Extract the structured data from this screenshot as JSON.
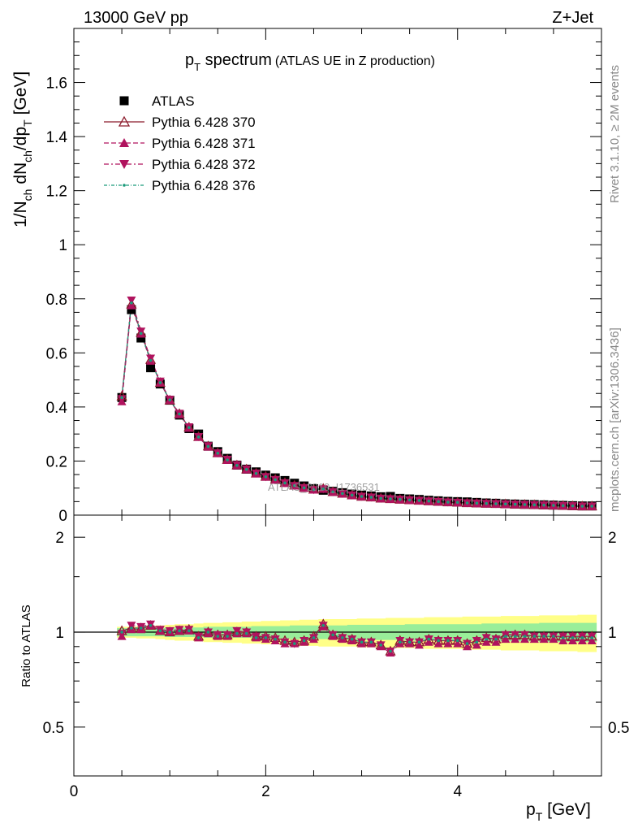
{
  "header": {
    "energy": "13000 GeV pp",
    "process": "Z+Jet"
  },
  "side_labels": {
    "rivet": "Rivet 3.1.10, ≥ 2M events",
    "mcplots": "mcplots.cern.ch [arXiv:1306.3436]"
  },
  "watermark": "ATLAS_2019_I1736531",
  "chart_data": [
    {
      "type": "scatter",
      "title_main": "p",
      "title_sub": "T",
      "title_rest": " spectrum",
      "title_note": "(ATLAS UE in Z production)",
      "ylabel_pre": "1/N",
      "ylabel_sub1": "ch",
      "ylabel_mid": " dN",
      "ylabel_sub2": "ch",
      "ylabel_post": "/dp",
      "ylabel_sub3": "T",
      "ylabel_unit": " [GeV]",
      "xlim": [
        0,
        5.5
      ],
      "ylim": [
        0,
        1.8
      ],
      "y_ticks": [
        0,
        0.2,
        0.4,
        0.6,
        0.8,
        1,
        1.2,
        1.4,
        1.6
      ],
      "y_tick_labels": [
        "0",
        "0.2",
        "0.4",
        "0.6",
        "0.8",
        "1",
        "1.2",
        "1.4",
        "1.6"
      ],
      "legend_position": "top-left",
      "x": [
        0.5,
        0.6,
        0.7,
        0.8,
        0.9,
        1.0,
        1.1,
        1.2,
        1.3,
        1.4,
        1.5,
        1.6,
        1.7,
        1.8,
        1.9,
        2.0,
        2.1,
        2.2,
        2.3,
        2.4,
        2.5,
        2.6,
        2.7,
        2.8,
        2.9,
        3.0,
        3.1,
        3.2,
        3.3,
        3.4,
        3.5,
        3.6,
        3.7,
        3.8,
        3.9,
        4.0,
        4.1,
        4.2,
        4.3,
        4.4,
        4.5,
        4.6,
        4.7,
        4.8,
        4.9,
        5.0,
        5.1,
        5.2,
        5.3,
        5.4
      ],
      "series": [
        {
          "name": "ATLAS",
          "color": "#000000",
          "marker": "square",
          "values": [
            0.435,
            0.76,
            0.655,
            0.545,
            0.485,
            0.425,
            0.37,
            0.32,
            0.3,
            0.255,
            0.235,
            0.21,
            0.185,
            0.17,
            0.16,
            0.148,
            0.138,
            0.128,
            0.118,
            0.108,
            0.098,
            0.092,
            0.088,
            0.083,
            0.078,
            0.074,
            0.071,
            0.068,
            0.069,
            0.062,
            0.06,
            0.058,
            0.055,
            0.053,
            0.051,
            0.05,
            0.049,
            0.047,
            0.045,
            0.044,
            0.042,
            0.041,
            0.04,
            0.039,
            0.038,
            0.037,
            0.036,
            0.035,
            0.034,
            0.034
          ]
        },
        {
          "name": "Pythia 6.428 370",
          "color": "#8b1a2b",
          "marker": "open-triangle-up",
          "dash": "",
          "values": [
            0.44,
            0.78,
            0.675,
            0.575,
            0.49,
            0.425,
            0.375,
            0.325,
            0.29,
            0.255,
            0.23,
            0.205,
            0.185,
            0.17,
            0.155,
            0.143,
            0.132,
            0.12,
            0.11,
            0.102,
            0.095,
            0.098,
            0.086,
            0.08,
            0.074,
            0.069,
            0.066,
            0.062,
            0.06,
            0.058,
            0.056,
            0.054,
            0.052,
            0.05,
            0.048,
            0.047,
            0.045,
            0.044,
            0.043,
            0.042,
            0.041,
            0.04,
            0.039,
            0.038,
            0.037,
            0.036,
            0.035,
            0.034,
            0.033,
            0.033
          ]
        },
        {
          "name": "Pythia 6.428 371",
          "color": "#b0135e",
          "marker": "triangle-up",
          "dash": "6,3",
          "values": [
            0.42,
            0.775,
            0.67,
            0.57,
            0.49,
            0.425,
            0.372,
            0.322,
            0.288,
            0.252,
            0.228,
            0.203,
            0.183,
            0.168,
            0.153,
            0.141,
            0.13,
            0.118,
            0.108,
            0.1,
            0.093,
            0.096,
            0.085,
            0.079,
            0.073,
            0.068,
            0.065,
            0.061,
            0.059,
            0.057,
            0.055,
            0.053,
            0.051,
            0.049,
            0.047,
            0.046,
            0.044,
            0.043,
            0.042,
            0.041,
            0.04,
            0.039,
            0.038,
            0.037,
            0.036,
            0.035,
            0.034,
            0.033,
            0.032,
            0.032
          ]
        },
        {
          "name": "Pythia 6.428 372",
          "color": "#b0135e",
          "marker": "triangle-down",
          "dash": "6,3,2,3",
          "values": [
            0.43,
            0.795,
            0.68,
            0.58,
            0.495,
            0.428,
            0.376,
            0.326,
            0.29,
            0.256,
            0.23,
            0.206,
            0.186,
            0.17,
            0.155,
            0.142,
            0.131,
            0.119,
            0.109,
            0.101,
            0.094,
            0.097,
            0.086,
            0.08,
            0.074,
            0.069,
            0.066,
            0.062,
            0.06,
            0.058,
            0.056,
            0.054,
            0.052,
            0.05,
            0.048,
            0.047,
            0.045,
            0.044,
            0.043,
            0.042,
            0.041,
            0.04,
            0.039,
            0.038,
            0.037,
            0.036,
            0.035,
            0.034,
            0.033,
            0.033
          ]
        },
        {
          "name": "Pythia 6.428 376",
          "color": "#1a9a7a",
          "marker": "dot",
          "dash": "4,2,1,2",
          "values": [
            0.435,
            0.785,
            0.672,
            0.572,
            0.49,
            0.426,
            0.374,
            0.324,
            0.289,
            0.254,
            0.229,
            0.204,
            0.184,
            0.169,
            0.154,
            0.142,
            0.131,
            0.119,
            0.109,
            0.101,
            0.094,
            0.097,
            0.086,
            0.08,
            0.074,
            0.069,
            0.066,
            0.062,
            0.06,
            0.058,
            0.056,
            0.054,
            0.052,
            0.05,
            0.048,
            0.047,
            0.045,
            0.044,
            0.043,
            0.042,
            0.041,
            0.04,
            0.039,
            0.038,
            0.037,
            0.036,
            0.035,
            0.034,
            0.033,
            0.033
          ]
        }
      ]
    },
    {
      "type": "scatter",
      "ylabel": "Ratio to ATLAS",
      "xlabel_main": "p",
      "xlabel_sub": "T",
      "xlabel_unit": " [GeV]",
      "xlim": [
        0,
        5.5
      ],
      "ylim": [
        0.35,
        2.35
      ],
      "log_y": true,
      "x_ticks": [
        0,
        2,
        4
      ],
      "x_tick_labels": [
        "0",
        "2",
        "4"
      ],
      "y_ticks": [
        0.5,
        1,
        2
      ],
      "y_tick_labels": [
        "0.5",
        "1",
        "2"
      ],
      "band_green_halfwidth": [
        0.03,
        0.03,
        0.03,
        0.03,
        0.03,
        0.035,
        0.035,
        0.035,
        0.035,
        0.04,
        0.04,
        0.04,
        0.04,
        0.04,
        0.045,
        0.045,
        0.045,
        0.045,
        0.05,
        0.05,
        0.05,
        0.05,
        0.05,
        0.05,
        0.055,
        0.055,
        0.055,
        0.055,
        0.055,
        0.055,
        0.06,
        0.06,
        0.06,
        0.06,
        0.06,
        0.06,
        0.06,
        0.06,
        0.065,
        0.065,
        0.065,
        0.065,
        0.065,
        0.065,
        0.07,
        0.07,
        0.07,
        0.07,
        0.07,
        0.07
      ],
      "band_yellow_halfwidth": [
        0.04,
        0.04,
        0.045,
        0.045,
        0.05,
        0.055,
        0.06,
        0.06,
        0.065,
        0.07,
        0.07,
        0.075,
        0.075,
        0.08,
        0.08,
        0.085,
        0.085,
        0.09,
        0.09,
        0.095,
        0.095,
        0.1,
        0.1,
        0.1,
        0.1,
        0.105,
        0.105,
        0.105,
        0.11,
        0.11,
        0.11,
        0.11,
        0.115,
        0.115,
        0.115,
        0.115,
        0.12,
        0.12,
        0.12,
        0.12,
        0.125,
        0.125,
        0.125,
        0.125,
        0.13,
        0.13,
        0.13,
        0.13,
        0.135,
        0.135
      ],
      "series": [
        {
          "name": "Pythia 6.428 370",
          "color": "#8b1a2b",
          "marker": "open-triangle-up",
          "dash": "",
          "values": [
            1.01,
            1.03,
            1.03,
            1.05,
            1.01,
            1.0,
            1.01,
            1.02,
            0.97,
            1.0,
            0.98,
            0.98,
            1.0,
            1.0,
            0.97,
            0.97,
            0.96,
            0.94,
            0.93,
            0.94,
            0.97,
            1.06,
            0.98,
            0.96,
            0.95,
            0.93,
            0.93,
            0.91,
            0.87,
            0.94,
            0.93,
            0.93,
            0.95,
            0.94,
            0.94,
            0.94,
            0.92,
            0.94,
            0.96,
            0.95,
            0.98,
            0.98,
            0.98,
            0.97,
            0.97,
            0.97,
            0.97,
            0.97,
            0.97,
            0.97
          ]
        },
        {
          "name": "Pythia 6.428 371",
          "color": "#b0135e",
          "marker": "triangle-up",
          "dash": "6,3",
          "values": [
            0.97,
            1.02,
            1.02,
            1.05,
            1.01,
            1.0,
            1.01,
            1.01,
            0.96,
            0.99,
            0.97,
            0.97,
            0.99,
            0.99,
            0.96,
            0.95,
            0.94,
            0.92,
            0.92,
            0.93,
            0.95,
            1.04,
            0.97,
            0.95,
            0.94,
            0.92,
            0.92,
            0.9,
            0.86,
            0.92,
            0.92,
            0.91,
            0.93,
            0.92,
            0.92,
            0.92,
            0.9,
            0.91,
            0.93,
            0.93,
            0.95,
            0.95,
            0.95,
            0.95,
            0.95,
            0.95,
            0.94,
            0.94,
            0.94,
            0.94
          ]
        },
        {
          "name": "Pythia 6.428 372",
          "color": "#b0135e",
          "marker": "triangle-down",
          "dash": "6,3,2,3",
          "values": [
            0.99,
            1.05,
            1.04,
            1.06,
            1.02,
            1.01,
            1.02,
            1.02,
            0.97,
            1.0,
            0.98,
            0.98,
            1.01,
            1.0,
            0.97,
            0.96,
            0.95,
            0.93,
            0.92,
            0.94,
            0.96,
            1.05,
            0.98,
            0.96,
            0.95,
            0.93,
            0.93,
            0.91,
            0.87,
            0.94,
            0.93,
            0.93,
            0.95,
            0.94,
            0.94,
            0.94,
            0.92,
            0.94,
            0.96,
            0.95,
            0.98,
            0.98,
            0.98,
            0.97,
            0.97,
            0.97,
            0.97,
            0.97,
            0.97,
            0.97
          ]
        },
        {
          "name": "Pythia 6.428 376",
          "color": "#1a9a7a",
          "marker": "dot",
          "dash": "4,2,1,2",
          "values": [
            1.0,
            1.03,
            1.03,
            1.05,
            1.01,
            1.0,
            1.01,
            1.01,
            0.96,
            1.0,
            0.97,
            0.97,
            0.99,
            0.99,
            0.96,
            0.96,
            0.95,
            0.93,
            0.92,
            0.94,
            0.96,
            1.05,
            0.98,
            0.96,
            0.95,
            0.93,
            0.93,
            0.91,
            0.87,
            0.93,
            0.93,
            0.93,
            0.95,
            0.94,
            0.94,
            0.94,
            0.92,
            0.93,
            0.95,
            0.95,
            0.97,
            0.97,
            0.97,
            0.97,
            0.97,
            0.97,
            0.96,
            0.96,
            0.96,
            0.96
          ]
        }
      ]
    }
  ]
}
